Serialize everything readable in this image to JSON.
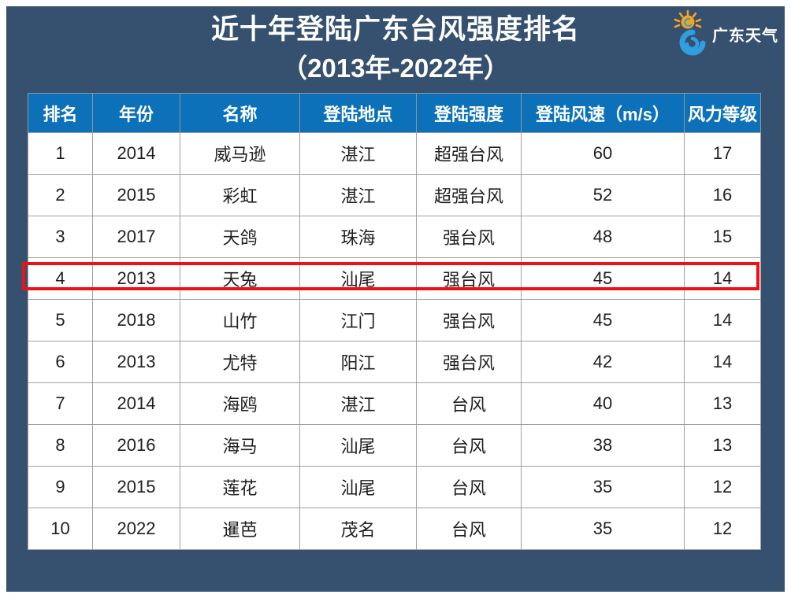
{
  "page": {
    "title": "近十年登陆广东台风强度排名",
    "subtitle": "（2013年-2022年）"
  },
  "logo": {
    "text": "广东天气",
    "icon": "sun-typhoon-icon"
  },
  "colors": {
    "background_navy": "#36506f",
    "header_blue": "#0c71b8",
    "highlight_red": "#ee1111",
    "cell_border_gray": "#a0a0a0",
    "text_dark": "#1f1f1f",
    "title_white": "#ffffff",
    "logo_sun_orange": "#f7a41d",
    "logo_swirl_blue": "#2f9fe0"
  },
  "chart_data": {
    "type": "table",
    "title": "近十年登陆广东台风强度排名",
    "subtitle": "（2013年-2022年）",
    "columns": [
      "排名",
      "年份",
      "名称",
      "登陆地点",
      "登陆强度",
      "登陆风速（m/s）",
      "风力等级"
    ],
    "rows": [
      [
        "1",
        "2014",
        "威马逊",
        "湛江",
        "超强台风",
        "60",
        "17"
      ],
      [
        "2",
        "2015",
        "彩虹",
        "湛江",
        "超强台风",
        "52",
        "16"
      ],
      [
        "3",
        "2017",
        "天鸽",
        "珠海",
        "强台风",
        "48",
        "15"
      ],
      [
        "4",
        "2013",
        "天兔",
        "汕尾",
        "强台风",
        "45",
        "14"
      ],
      [
        "5",
        "2018",
        "山竹",
        "江门",
        "强台风",
        "45",
        "14"
      ],
      [
        "6",
        "2013",
        "尤特",
        "阳江",
        "强台风",
        "42",
        "14"
      ],
      [
        "7",
        "2014",
        "海鸥",
        "湛江",
        "台风",
        "40",
        "13"
      ],
      [
        "8",
        "2016",
        "海马",
        "汕尾",
        "台风",
        "38",
        "13"
      ],
      [
        "9",
        "2015",
        "莲花",
        "汕尾",
        "台风",
        "35",
        "12"
      ],
      [
        "10",
        "2022",
        "暹芭",
        "茂名",
        "台风",
        "35",
        "12"
      ]
    ],
    "highlighted_row_rank": "4",
    "legend_position": "none",
    "grid": "on"
  }
}
